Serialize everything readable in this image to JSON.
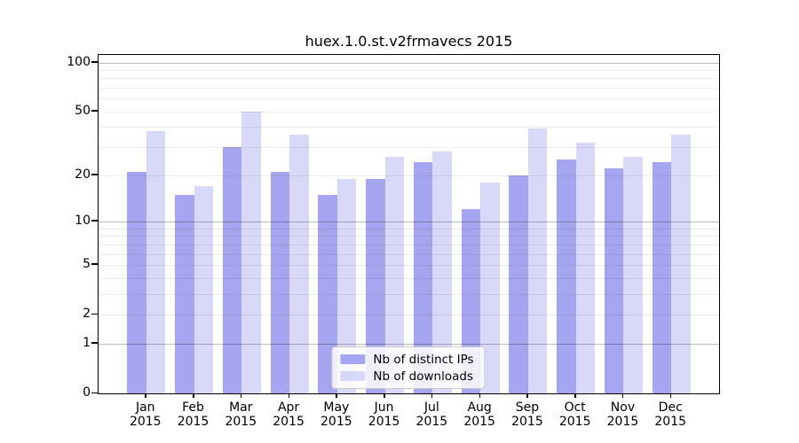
{
  "title": "huex.1.0.st.v2frmavecs 2015",
  "chart_data": {
    "type": "bar",
    "title": "huex.1.0.st.v2frmavecs 2015",
    "scale": "log1p",
    "grid": true,
    "categories": [
      "Jan",
      "Feb",
      "Mar",
      "Apr",
      "May",
      "Jun",
      "Jul",
      "Aug",
      "Sep",
      "Oct",
      "Nov",
      "Dec"
    ],
    "year_label": "2015",
    "series": [
      {
        "name": "Nb of distinct IPs",
        "color": "#a5a5f0",
        "values": [
          21,
          15,
          30,
          21,
          15,
          19,
          24,
          12,
          20,
          25,
          22,
          24
        ]
      },
      {
        "name": "Nb of downloads",
        "color": "#d8d8f8",
        "values": [
          38,
          17,
          50,
          36,
          19,
          26,
          28,
          18,
          39,
          32,
          26,
          36
        ]
      }
    ],
    "y_ticks": [
      {
        "label": "100",
        "value": 100
      },
      {
        "label": "50",
        "value": 50
      },
      {
        "label": "20",
        "value": 20
      },
      {
        "label": "10",
        "value": 10
      },
      {
        "label": "5",
        "value": 5
      },
      {
        "label": "2",
        "value": 2
      },
      {
        "label": "1",
        "value": 1
      },
      {
        "label": "0",
        "value": 0
      }
    ],
    "grid_major_values": [
      100,
      10,
      1
    ],
    "grid_minor_values": [
      90,
      80,
      70,
      60,
      50,
      40,
      30,
      20,
      9,
      8,
      7,
      6,
      5,
      4,
      3,
      2
    ],
    "ylim": [
      0,
      110
    ],
    "xlabel": "",
    "ylabel": "",
    "legend_position": "lower center"
  }
}
